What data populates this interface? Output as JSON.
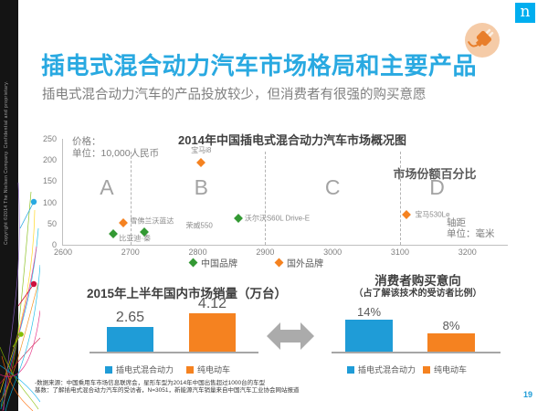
{
  "slide": {
    "title": "插电式混合动力汽车市场格局和主要产品",
    "subtitle": "插电式混合动力汽车的产品投放较少，但消费者有很强的购买意愿",
    "logo_letter": "n",
    "page_number": "19",
    "sidebar_copyright": "Copyright ©2014 The Nielsen Company. Confidential and proprietary.",
    "footnotes": [
      "-数据来源：中国乘用车市场信息联席会，星形车型为2014年中国出售超过1000台的车型",
      "基数：了解插电式混合动力汽车的受访者，N=3051，新能源汽车销量来自中国汽车工业协会网站报道"
    ]
  },
  "colors": {
    "nielsen_blue": "#00AEEF",
    "title_blue": "#29A9E1",
    "bar_blue": "#1F9CD7",
    "bar_orange": "#F58220",
    "marker_green": "#339933",
    "marker_orange": "#F58220"
  },
  "chart_data": [
    {
      "type": "scatter",
      "title": "2014年中国插电式混合动力汽车市场概况图",
      "ylabel_lines": [
        "价格：",
        "单位：10,000人民币"
      ],
      "xlabel_lines": [
        "轴距",
        "单位：毫米"
      ],
      "annotation": "市场份额百分比",
      "xlim": [
        2600,
        3260
      ],
      "ylim": [
        0,
        250
      ],
      "x_ticks": [
        "2600",
        "2700",
        "2800",
        "2900",
        "3000",
        "3100",
        "3200"
      ],
      "y_ticks": [
        "0",
        "50",
        "100",
        "150",
        "200",
        "250"
      ],
      "dividers_x": [
        2700,
        2900,
        3100
      ],
      "segments": [
        {
          "label": "A",
          "x": 2665
        },
        {
          "label": "B",
          "x": 2805
        },
        {
          "label": "C",
          "x": 3000
        },
        {
          "label": "D",
          "x": 3155
        }
      ],
      "legend": [
        {
          "label": "中国品牌",
          "color": "#339933"
        },
        {
          "label": "国外品牌",
          "color": "#F58220"
        }
      ],
      "series": [
        {
          "name": "中国品牌",
          "color": "#339933",
          "points": [
            {
              "label": "比亚迪·秦",
              "x": 2675,
              "y": 25,
              "anchor": "right",
              "dx": 6,
              "dy": 5
            },
            {
              "label": "荣威550",
              "x": 2720,
              "y": 30,
              "anchor": "right",
              "dx": 46,
              "dy": -7
            },
            {
              "label": "沃尔沃S60L Drive-E",
              "x": 2860,
              "y": 62,
              "anchor": "right",
              "dx": 7,
              "dy": 0
            }
          ]
        },
        {
          "name": "国外品牌",
          "color": "#F58220",
          "points": [
            {
              "label": "雪佛兰沃蓝达",
              "x": 2690,
              "y": 52,
              "anchor": "right",
              "dx": 7,
              "dy": -2
            },
            {
              "label": "宝马i8",
              "x": 2805,
              "y": 195,
              "anchor": "above",
              "dx": 0,
              "dy": -2
            },
            {
              "label": "宝马530Le",
              "x": 3110,
              "y": 72,
              "anchor": "right",
              "dx": 9,
              "dy": 0
            }
          ]
        }
      ]
    },
    {
      "type": "bar",
      "title": "2015年上半年国内市场销量（万台）",
      "categories": [
        "插电式混合动力",
        "纯电动车"
      ],
      "values": [
        2.65,
        4.12
      ],
      "labels": [
        "2.65",
        "4.12"
      ],
      "colors": [
        "#1F9CD7",
        "#F58220"
      ],
      "ylim": [
        0,
        5
      ],
      "legend_position": "bottom"
    },
    {
      "type": "bar",
      "title": "消费者购买意向",
      "subtitle": "（占了解该技术的受访者比例）",
      "categories": [
        "插电式混合动力",
        "纯电动车"
      ],
      "values": [
        14,
        8
      ],
      "labels": [
        "14%",
        "8%"
      ],
      "colors": [
        "#1F9CD7",
        "#F58220"
      ],
      "ylim": [
        0,
        20
      ],
      "legend_position": "bottom"
    }
  ]
}
